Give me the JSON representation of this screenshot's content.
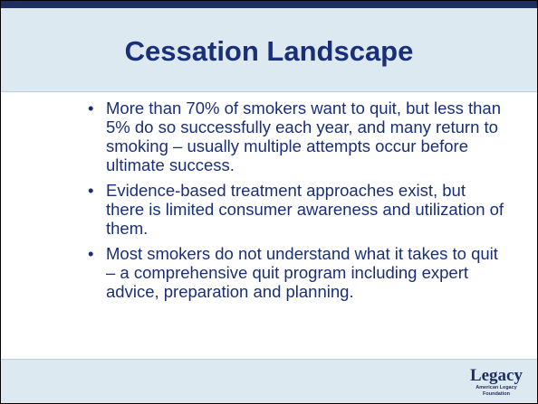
{
  "title": "Cessation Landscape",
  "bullets": [
    "More than 70% of smokers want to quit, but less than 5% do so successfully each year, and many return to smoking – usually multiple attempts occur before ultimate success.",
    "Evidence-based treatment approaches exist, but there is limited consumer awareness and utilization of them.",
    "Most smokers do not understand what it takes to quit – a comprehensive quit program including expert advice, preparation and planning."
  ],
  "logo": {
    "name": "Legacy",
    "subtitle_lines": [
      "American Legacy",
      "Foundation"
    ]
  }
}
